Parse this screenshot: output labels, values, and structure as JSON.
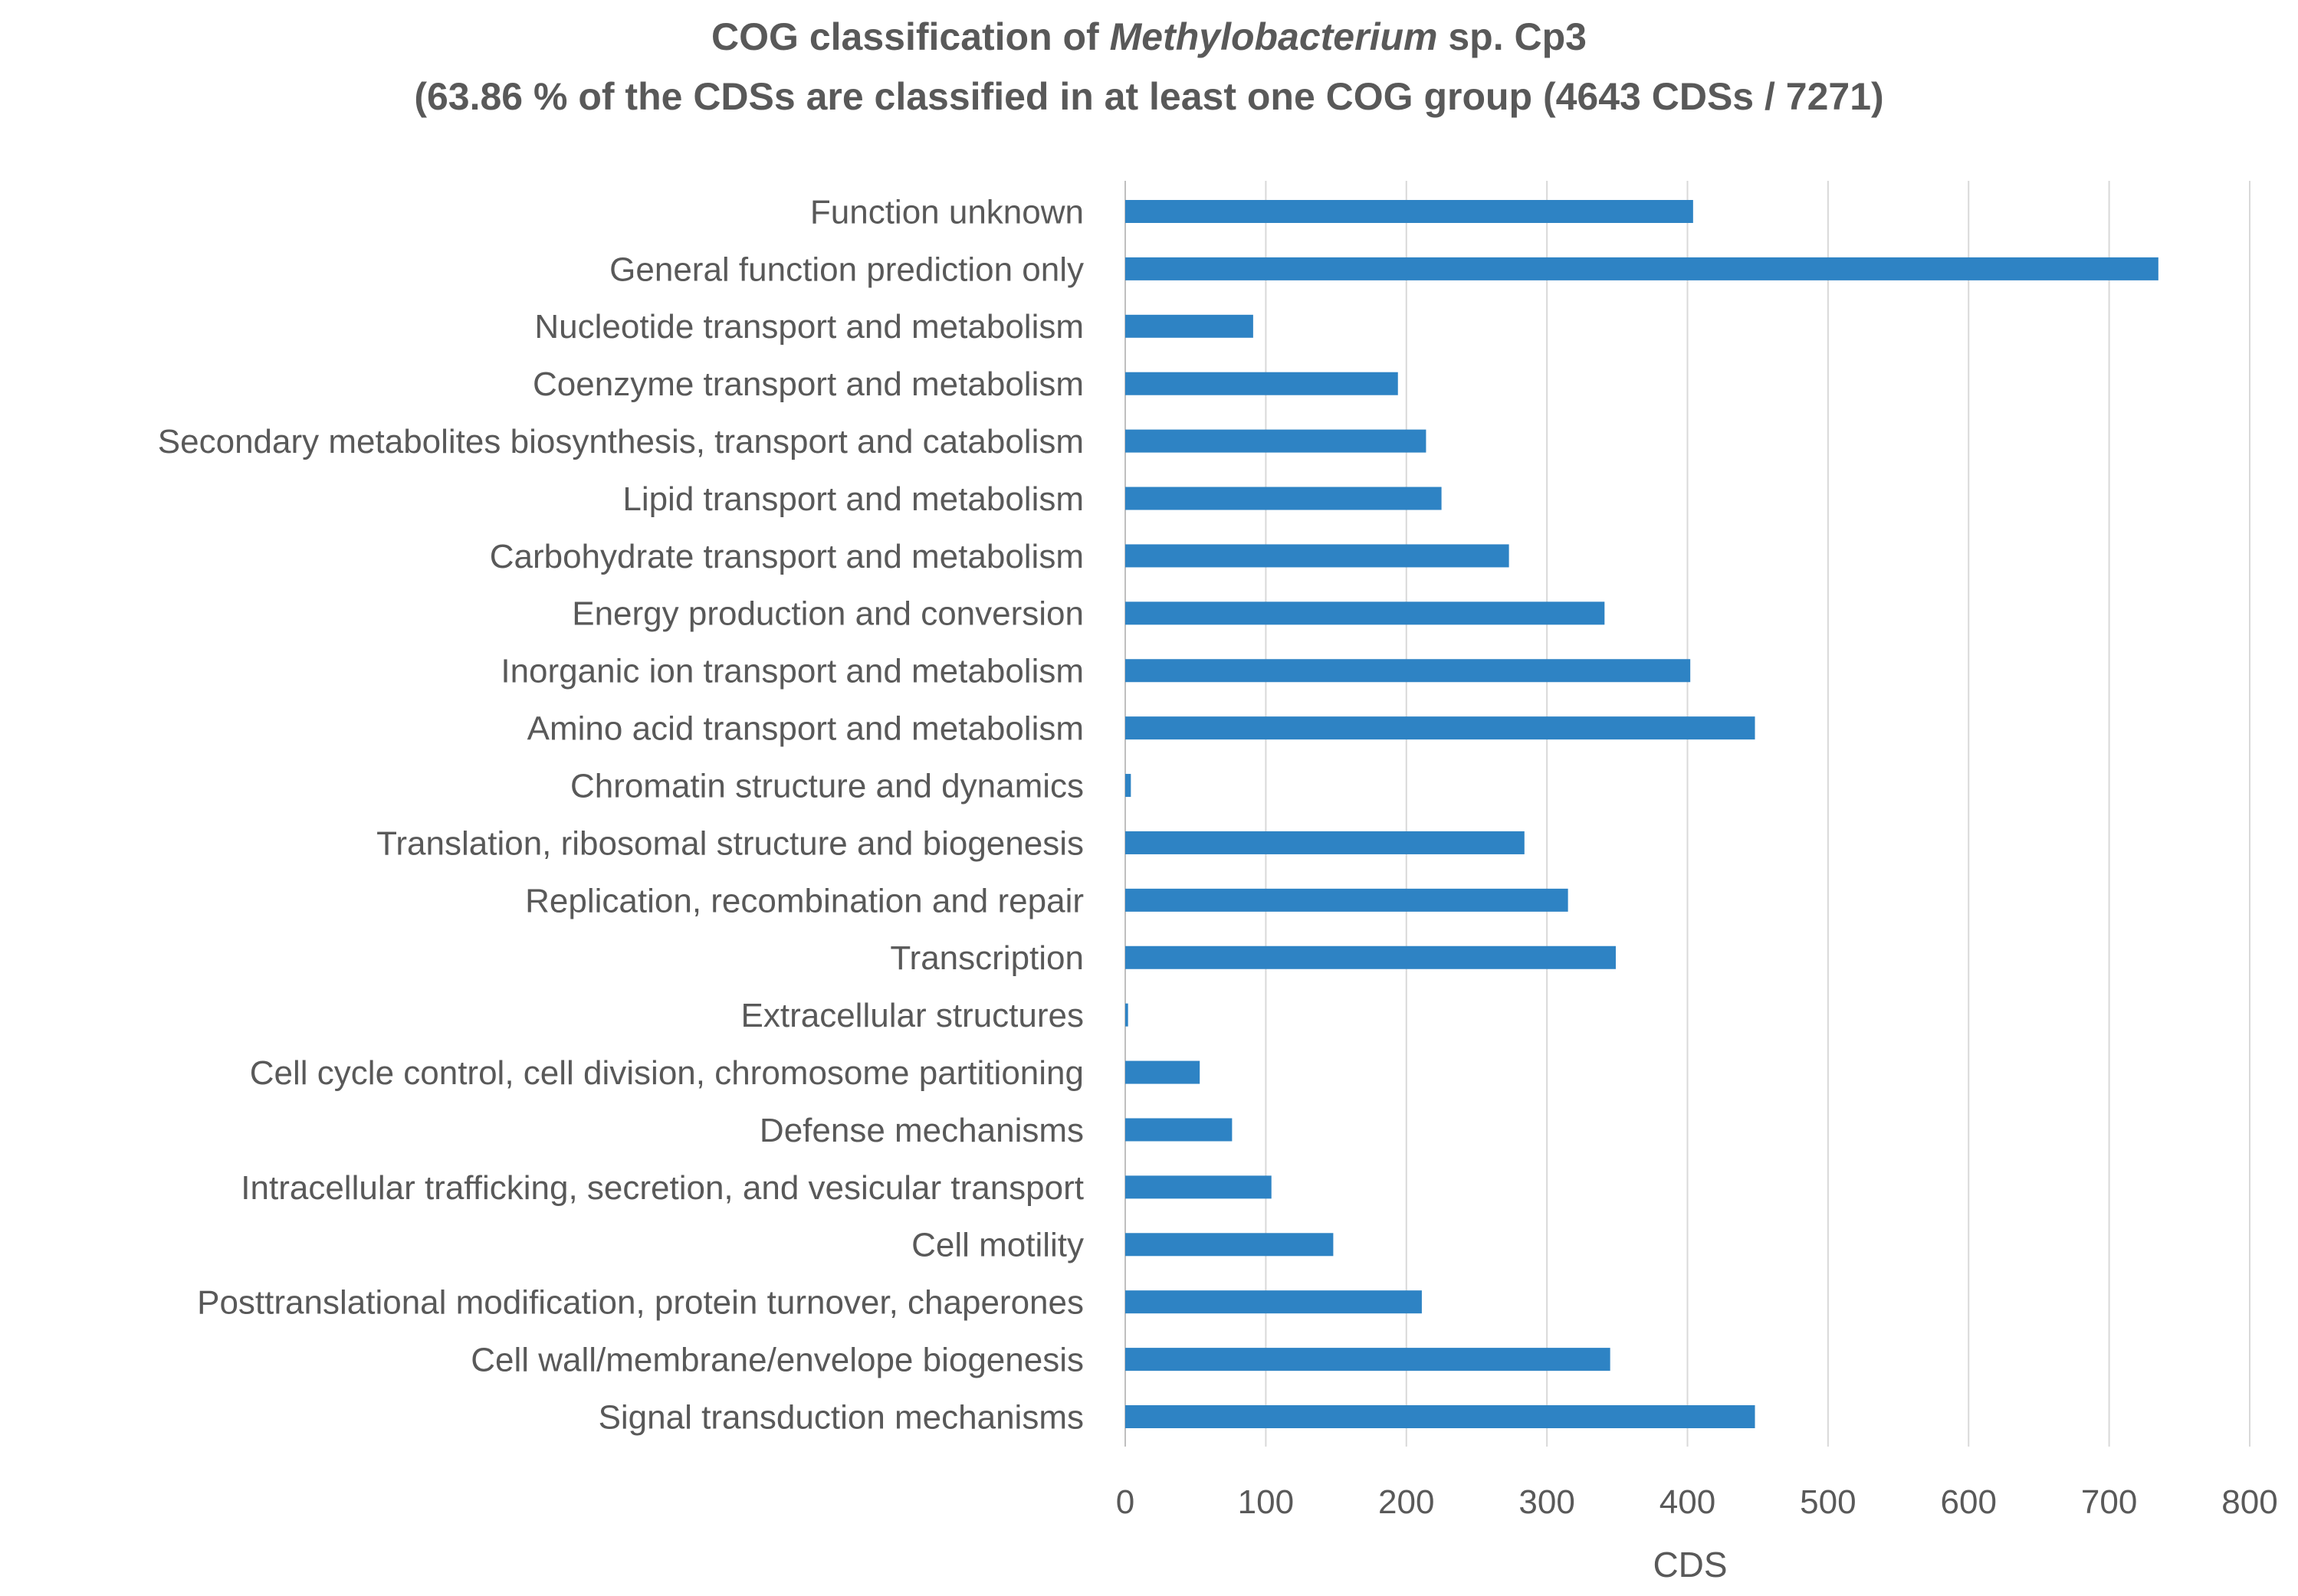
{
  "chart_data": {
    "type": "bar",
    "orientation": "horizontal",
    "title_line1_prefix": "COG classification of ",
    "title_line1_italic": "Methylobacterium",
    "title_line1_suffix": " sp. Cp3",
    "title_line2": "(63.86 % of the CDSs are classified in at least one COG group (4643 CDSs / 7271)",
    "xlabel": "CDS",
    "ylabel": "",
    "xlim": [
      0,
      800
    ],
    "xticks": [
      "0",
      "100",
      "200",
      "300",
      "400",
      "500",
      "600",
      "700",
      "800"
    ],
    "grid": true,
    "bar_color": "#2e83c4",
    "categories": [
      "Function unknown",
      "General function prediction only",
      "Nucleotide transport and metabolism",
      "Coenzyme transport and metabolism",
      "Secondary metabolites biosynthesis, transport and catabolism",
      "Lipid transport and metabolism",
      "Carbohydrate transport and metabolism",
      "Energy production and conversion",
      "Inorganic ion transport and metabolism",
      "Amino acid transport and metabolism",
      "Chromatin structure and dynamics",
      "Translation, ribosomal structure and biogenesis",
      "Replication, recombination and repair",
      "Transcription",
      "Extracellular structures",
      "Cell cycle control, cell division, chromosome partitioning",
      "Defense mechanisms",
      "Intracellular trafficking, secretion, and vesicular transport",
      "Cell motility",
      "Posttranslational modification, protein turnover, chaperones",
      "Cell wall/membrane/envelope biogenesis",
      "Signal transduction mechanisms"
    ],
    "values": [
      404,
      735,
      91,
      194,
      214,
      225,
      273,
      341,
      402,
      448,
      4,
      284,
      315,
      349,
      2,
      53,
      76,
      104,
      148,
      211,
      345,
      448
    ]
  }
}
